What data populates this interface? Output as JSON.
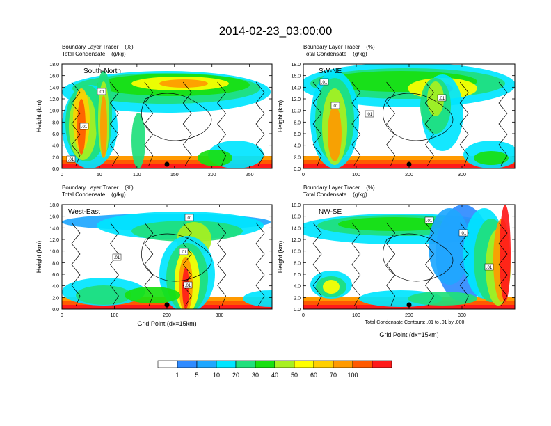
{
  "title": "2014-02-23_03:00:00",
  "panel_header": {
    "line1": "Boundary Layer Tracer    (%)",
    "line2": "Total Condensate    (g/kg)"
  },
  "y_axis_label": "Height (km)",
  "x_axis_label": "Grid Point (dx=15km)",
  "contour_note": "Total Condensate Contours: .01 to .01 by .000",
  "contour_label": ".01",
  "colorbar": {
    "labels": [
      "1",
      "5",
      "10",
      "20",
      "30",
      "40",
      "50",
      "60",
      "70",
      "100"
    ],
    "colors": [
      "#ffffff",
      "#2f8bff",
      "#1ea7ff",
      "#00e5ff",
      "#20e07c",
      "#18e010",
      "#a8f020",
      "#ffff00",
      "#ffcf00",
      "#ff9a00",
      "#ff5a00",
      "#ff1a1a"
    ]
  },
  "chart_data": [
    {
      "type": "heatmap",
      "name": "South-North",
      "title": "South-North",
      "ylabel": "Height (km)",
      "xlim": [
        0,
        280
      ],
      "ylim": [
        0,
        18
      ],
      "xticks": [
        0,
        50,
        100,
        150,
        200,
        250
      ],
      "yticks": [
        "0.0",
        "2.0",
        "4.0",
        "6.0",
        "8.0",
        "10.0",
        "12.0",
        "14.0",
        "16.0",
        "18.0"
      ],
      "marker_x": 140
    },
    {
      "type": "heatmap",
      "name": "SW-NE",
      "title": "SW-NE",
      "ylabel": "Height (km)",
      "xlim": [
        0,
        400
      ],
      "ylim": [
        0,
        18
      ],
      "xticks": [
        0,
        100,
        200,
        300
      ],
      "yticks": [
        "0.0",
        "2.0",
        "4.0",
        "6.0",
        "8.0",
        "10.0",
        "12.0",
        "14.0",
        "16.0",
        "18.0"
      ],
      "marker_x": 200
    },
    {
      "type": "heatmap",
      "name": "West-East",
      "title": "West-East",
      "ylabel": "Height (km)",
      "xlabel": "Grid Point (dx=15km)",
      "xlim": [
        0,
        400
      ],
      "ylim": [
        0,
        18
      ],
      "xticks": [
        0,
        100,
        200,
        300
      ],
      "yticks": [
        "0.0",
        "2.0",
        "4.0",
        "6.0",
        "8.0",
        "10.0",
        "12.0",
        "14.0",
        "16.0",
        "18.0"
      ],
      "marker_x": 200
    },
    {
      "type": "heatmap",
      "name": "NW-SE",
      "title": "NW-SE",
      "ylabel": "Height (km)",
      "xlabel": "Grid Point (dx=15km)",
      "xlim": [
        0,
        400
      ],
      "ylim": [
        0,
        18
      ],
      "xticks": [
        0,
        100,
        200,
        300
      ],
      "yticks": [
        "0.0",
        "2.0",
        "4.0",
        "6.0",
        "8.0",
        "10.0",
        "12.0",
        "14.0",
        "16.0",
        "18.0"
      ],
      "marker_x": 200
    }
  ]
}
